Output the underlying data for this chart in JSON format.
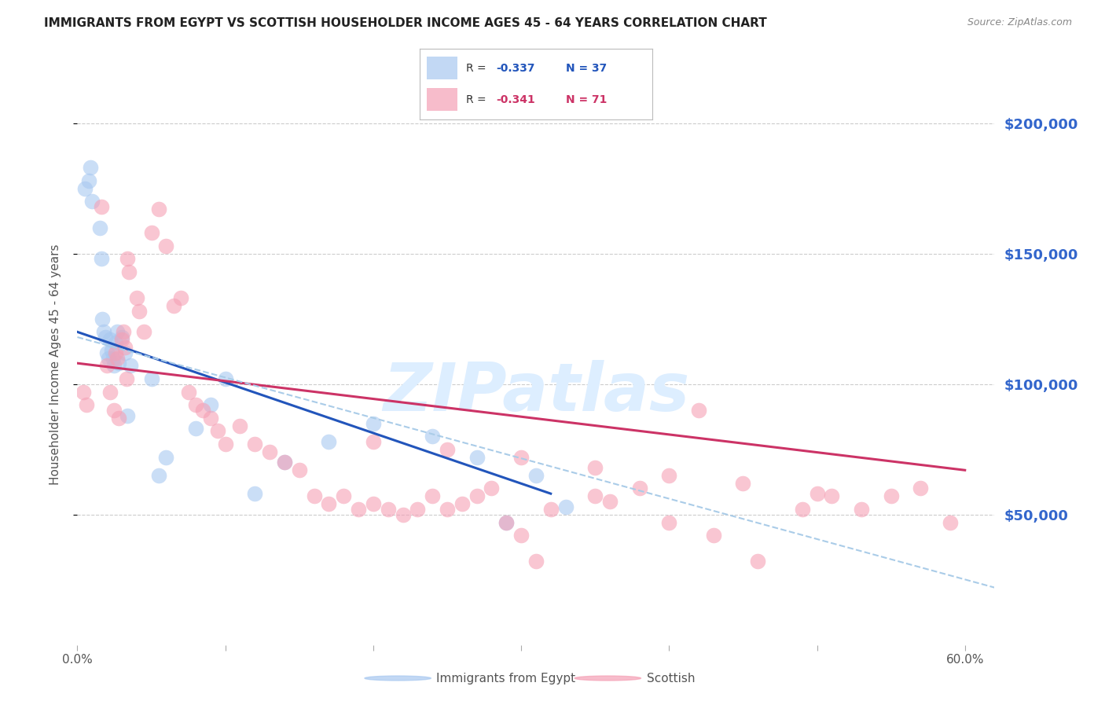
{
  "title": "IMMIGRANTS FROM EGYPT VS SCOTTISH HOUSEHOLDER INCOME AGES 45 - 64 YEARS CORRELATION CHART",
  "source": "Source: ZipAtlas.com",
  "ylabel": "Householder Income Ages 45 - 64 years",
  "ytick_values": [
    50000,
    100000,
    150000,
    200000
  ],
  "ytick_labels": [
    "$50,000",
    "$100,000",
    "$150,000",
    "$200,000"
  ],
  "ylim": [
    0,
    215000
  ],
  "xlim": [
    0.0,
    0.62
  ],
  "blue_fill": "#a8c8f0",
  "pink_fill": "#f5a0b5",
  "blue_line": "#2255bb",
  "pink_line": "#cc3366",
  "dashed_color": "#aacce8",
  "right_label_color": "#3366cc",
  "title_color": "#222222",
  "source_color": "#888888",
  "grid_color": "#cccccc",
  "bg_color": "#ffffff",
  "watermark_color": "#ddeeff",
  "blue_scatter_x": [
    0.005,
    0.008,
    0.009,
    0.015,
    0.016,
    0.017,
    0.018,
    0.019,
    0.02,
    0.021,
    0.022,
    0.023,
    0.024,
    0.025,
    0.026,
    0.027,
    0.028,
    0.03,
    0.032,
    0.034,
    0.036,
    0.05,
    0.055,
    0.06,
    0.08,
    0.09,
    0.1,
    0.12,
    0.14,
    0.17,
    0.2,
    0.24,
    0.27,
    0.29,
    0.31,
    0.33,
    0.01
  ],
  "blue_scatter_y": [
    175000,
    178000,
    183000,
    160000,
    148000,
    125000,
    120000,
    118000,
    112000,
    110000,
    117000,
    113000,
    110000,
    107000,
    116000,
    120000,
    108000,
    118000,
    112000,
    88000,
    107000,
    102000,
    65000,
    72000,
    83000,
    92000,
    102000,
    58000,
    70000,
    78000,
    85000,
    80000,
    72000,
    47000,
    65000,
    53000,
    170000
  ],
  "pink_scatter_x": [
    0.004,
    0.006,
    0.016,
    0.02,
    0.022,
    0.025,
    0.026,
    0.027,
    0.028,
    0.03,
    0.031,
    0.032,
    0.033,
    0.034,
    0.035,
    0.04,
    0.042,
    0.045,
    0.05,
    0.055,
    0.06,
    0.065,
    0.07,
    0.075,
    0.08,
    0.085,
    0.09,
    0.095,
    0.1,
    0.11,
    0.12,
    0.13,
    0.14,
    0.15,
    0.16,
    0.17,
    0.18,
    0.19,
    0.2,
    0.21,
    0.22,
    0.23,
    0.24,
    0.25,
    0.26,
    0.27,
    0.28,
    0.29,
    0.3,
    0.31,
    0.32,
    0.35,
    0.38,
    0.4,
    0.43,
    0.46,
    0.49,
    0.51,
    0.53,
    0.55,
    0.57,
    0.59,
    0.2,
    0.25,
    0.3,
    0.35,
    0.4,
    0.45,
    0.5,
    0.42,
    0.36
  ],
  "pink_scatter_y": [
    97000,
    92000,
    168000,
    107000,
    97000,
    90000,
    112000,
    110000,
    87000,
    117000,
    120000,
    114000,
    102000,
    148000,
    143000,
    133000,
    128000,
    120000,
    158000,
    167000,
    153000,
    130000,
    133000,
    97000,
    92000,
    90000,
    87000,
    82000,
    77000,
    84000,
    77000,
    74000,
    70000,
    67000,
    57000,
    54000,
    57000,
    52000,
    54000,
    52000,
    50000,
    52000,
    57000,
    52000,
    54000,
    57000,
    60000,
    47000,
    42000,
    32000,
    52000,
    57000,
    60000,
    47000,
    42000,
    32000,
    52000,
    57000,
    52000,
    57000,
    60000,
    47000,
    78000,
    75000,
    72000,
    68000,
    65000,
    62000,
    58000,
    90000,
    55000
  ],
  "blue_line_x": [
    0.0,
    0.32
  ],
  "blue_line_y": [
    120000,
    58000
  ],
  "pink_line_x": [
    0.0,
    0.6
  ],
  "pink_line_y": [
    108000,
    67000
  ],
  "dashed_line_x": [
    0.0,
    0.62
  ],
  "dashed_line_y": [
    118000,
    22000
  ]
}
